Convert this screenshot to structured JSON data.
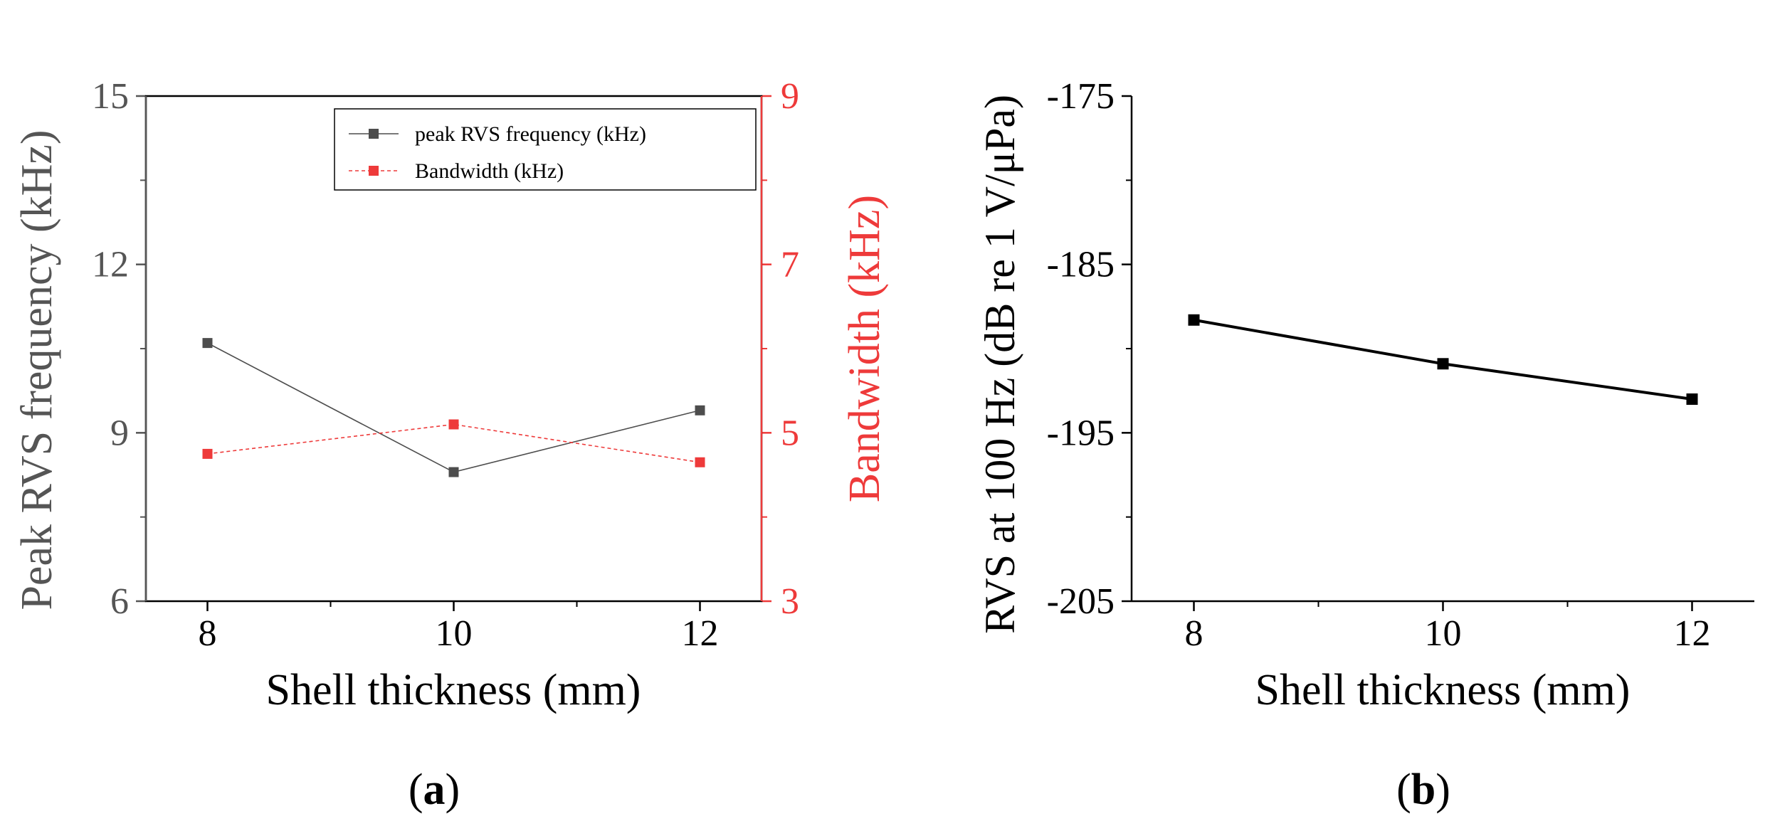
{
  "chart_data": [
    {
      "panel": "a",
      "panel_label": {
        "open": "(",
        "letter": "a",
        "close": ")"
      },
      "type": "line",
      "x": [
        8,
        10,
        12
      ],
      "xlabel": "Shell thickness (mm)",
      "xlim": [
        7.5,
        12.5
      ],
      "xticks": [
        "8",
        "10",
        "12"
      ],
      "ylabel": "Peak RVS frequency (kHz)",
      "ylim": [
        6,
        15
      ],
      "yticks": [
        "6",
        "9",
        "12",
        "15"
      ],
      "y2label": "Bandwidth (kHz)",
      "y2lim": [
        3,
        9
      ],
      "y2ticks": [
        "3",
        "5",
        "7",
        "9"
      ],
      "legend_position": "top-right",
      "series": [
        {
          "name": "peak RVS frequency (kHz)",
          "axis": "left",
          "color": "#4d4d4d",
          "style": "solid",
          "values": [
            10.6,
            8.3,
            9.4
          ]
        },
        {
          "name": "Bandwidth (kHz)",
          "axis": "right",
          "color": "#ee3a3a",
          "style": "dashed",
          "values": [
            4.75,
            5.1,
            4.65
          ]
        }
      ],
      "colors": {
        "left_axis": "#555555",
        "right_axis": "#ee3a3a"
      }
    },
    {
      "panel": "b",
      "panel_label": {
        "open": "(",
        "letter": "b",
        "close": ")"
      },
      "type": "line",
      "x": [
        8,
        10,
        12
      ],
      "xlabel": "Shell thickness (mm)",
      "xlim": [
        7.5,
        12.5
      ],
      "xticks": [
        "8",
        "10",
        "12"
      ],
      "ylabel": "RVS at 100 Hz (dB re 1 V/μPa)",
      "ylim": [
        -205,
        -175
      ],
      "yticks": [
        "-205",
        "-195",
        "-185",
        "-175"
      ],
      "series": [
        {
          "name": "RVS at 100 Hz",
          "color": "#000000",
          "style": "solid",
          "values": [
            -188.3,
            -190.9,
            -193.0
          ]
        }
      ]
    }
  ]
}
